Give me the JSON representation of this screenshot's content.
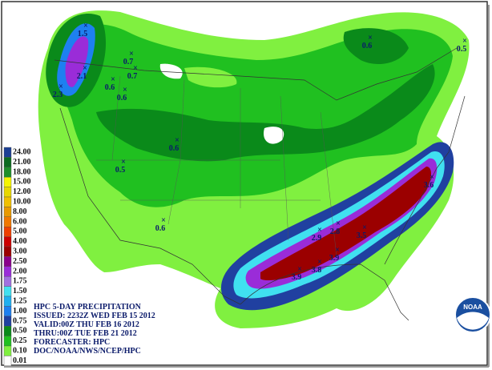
{
  "legend": [
    {
      "label": "24.00",
      "color": "#1c3f94"
    },
    {
      "label": "21.00",
      "color": "#0b6b1f"
    },
    {
      "label": "18.00",
      "color": "#1f8f2a"
    },
    {
      "label": "15.00",
      "color": "#f5f500"
    },
    {
      "label": "12.00",
      "color": "#e8d800"
    },
    {
      "label": "10.00",
      "color": "#f0c000"
    },
    {
      "label": "8.00",
      "color": "#e89a00"
    },
    {
      "label": "6.00",
      "color": "#f07800"
    },
    {
      "label": "5.00",
      "color": "#ee4000"
    },
    {
      "label": "4.00",
      "color": "#cd0000"
    },
    {
      "label": "3.00",
      "color": "#9b0000"
    },
    {
      "label": "2.50",
      "color": "#8b008b"
    },
    {
      "label": "2.00",
      "color": "#9a2cd8"
    },
    {
      "label": "1.75",
      "color": "#a070e0"
    },
    {
      "label": "1.50",
      "color": "#40e0f0"
    },
    {
      "label": "1.25",
      "color": "#20b0f0"
    },
    {
      "label": "1.00",
      "color": "#1e80f0"
    },
    {
      "label": "0.75",
      "color": "#2040a0"
    },
    {
      "label": "0.50",
      "color": "#0a8a1a"
    },
    {
      "label": "0.25",
      "color": "#20c020"
    },
    {
      "label": "0.10",
      "color": "#80f040"
    },
    {
      "label": "0.01",
      "color": "#ffffff"
    }
  ],
  "info": [
    "HPC 5-DAY PRECIPITATION",
    "ISSUED: 2232Z WED FEB 15 2012",
    "VALID:00Z THU FEB 16 2012",
    "THRU:00Z TUE FEB 21 2012",
    "FORECASTER: HPC",
    "DOC/NOAA/NWS/NCEP/HPC"
  ],
  "logo": "NOAA",
  "points": [
    "1.5",
    "2.1",
    "2.3",
    "0.7",
    "0.7",
    "0.6",
    "0.6",
    "0.6",
    "0.5",
    "0.6",
    "0.5",
    "0.6",
    "3.6",
    "2.9",
    "2.8",
    "3.5",
    "3.9",
    "3.8",
    "3.9"
  ]
}
